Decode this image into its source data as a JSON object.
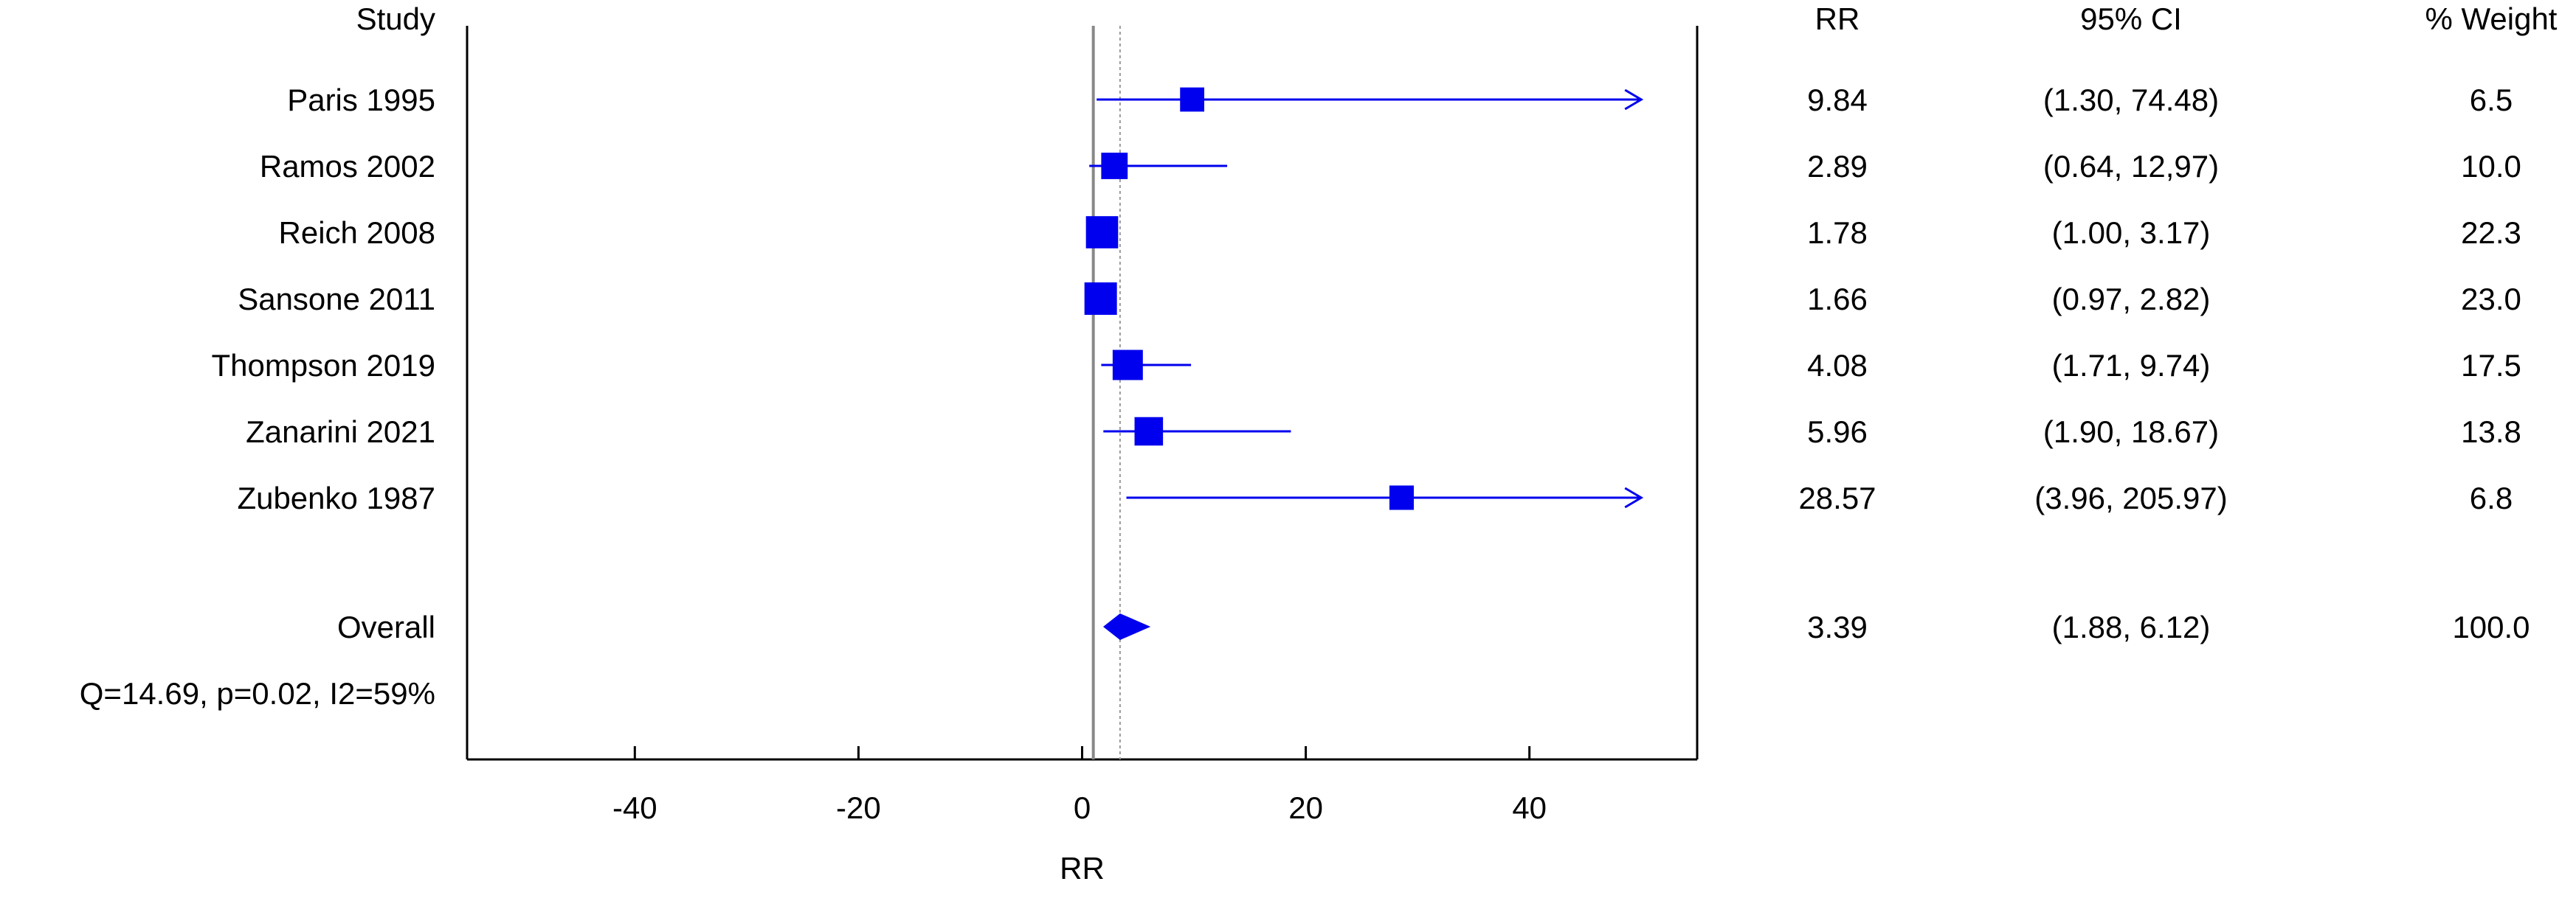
{
  "chart_data": {
    "type": "forest",
    "columns": {
      "study": "Study",
      "effect": "RR",
      "ci": "95% CI",
      "weight": "% Weight"
    },
    "studies": [
      {
        "label": "Paris 1995",
        "rr": 9.84,
        "lower": 1.3,
        "upper": 74.48,
        "rr_text": "9.84",
        "ci_text": "(1.30, 74.48)",
        "weight": 6.5,
        "weight_text": "6.5",
        "upper_truncated": true
      },
      {
        "label": "Ramos 2002",
        "rr": 2.89,
        "lower": 0.64,
        "upper": 12.97,
        "rr_text": "2.89",
        "ci_text": "(0.64, 12,97)",
        "weight": 10.0,
        "weight_text": "10.0",
        "upper_truncated": false
      },
      {
        "label": "Reich 2008",
        "rr": 1.78,
        "lower": 1.0,
        "upper": 3.17,
        "rr_text": "1.78",
        "ci_text": "(1.00, 3.17)",
        "weight": 22.3,
        "weight_text": "22.3",
        "upper_truncated": false
      },
      {
        "label": "Sansone 2011",
        "rr": 1.66,
        "lower": 0.97,
        "upper": 2.82,
        "rr_text": "1.66",
        "ci_text": "(0.97, 2.82)",
        "weight": 23.0,
        "weight_text": "23.0",
        "upper_truncated": false
      },
      {
        "label": "Thompson 2019",
        "rr": 4.08,
        "lower": 1.71,
        "upper": 9.74,
        "rr_text": "4.08",
        "ci_text": "(1.71, 9.74)",
        "weight": 17.5,
        "weight_text": "17.5",
        "upper_truncated": false
      },
      {
        "label": "Zanarini 2021",
        "rr": 5.96,
        "lower": 1.9,
        "upper": 18.67,
        "rr_text": "5.96",
        "ci_text": "(1.90, 18.67)",
        "weight": 13.8,
        "weight_text": "13.8",
        "upper_truncated": false
      },
      {
        "label": "Zubenko 1987",
        "rr": 28.57,
        "lower": 3.96,
        "upper": 205.97,
        "rr_text": "28.57",
        "ci_text": "(3.96, 205.97)",
        "weight": 6.8,
        "weight_text": "6.8",
        "upper_truncated": true
      }
    ],
    "overall": {
      "label": "Overall",
      "rr": 3.39,
      "lower": 1.88,
      "upper": 6.12,
      "rr_text": "3.39",
      "ci_text": "(1.88, 6.12)",
      "weight_text": "100.0"
    },
    "heterogeneity": "Q=14.69, p=0.02, I2=59%",
    "xlabel": "RR",
    "xlim": [
      -55,
      55
    ],
    "display_max": 50,
    "xticks": [
      -40,
      -20,
      0,
      20,
      40
    ],
    "null_line": 1,
    "colors": {
      "marker": "#0000ee",
      "axis": "#000000",
      "null_line": "#888888",
      "overall_line": "#999999"
    }
  }
}
